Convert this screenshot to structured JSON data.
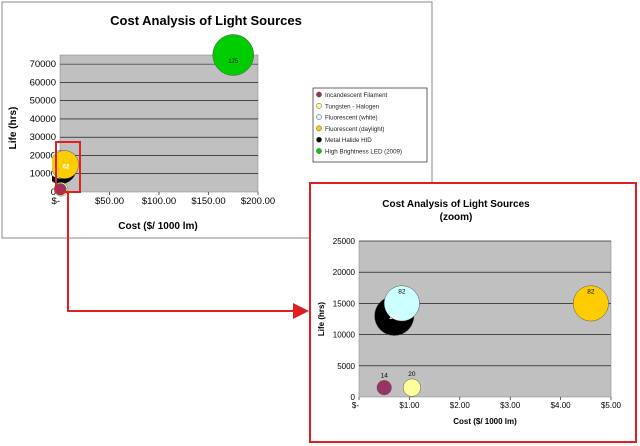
{
  "chart_data": [
    {
      "type": "bubble",
      "title": "Cost Analysis of Light Sources",
      "xlabel": "Cost ($/ 1000 lm)",
      "ylabel": "Life (hrs)",
      "xlim": [
        0,
        200
      ],
      "ylim": [
        0,
        75000
      ],
      "x_ticks": [
        0,
        50,
        100,
        150,
        200
      ],
      "x_tick_labels": [
        "$-",
        "$50.00",
        "$100.00",
        "$150.00",
        "$200.00"
      ],
      "y_ticks": [
        0,
        10000,
        20000,
        30000,
        40000,
        50000,
        60000,
        70000
      ],
      "y_tick_labels": [
        "0",
        "10000",
        "20000",
        "30000",
        "40000",
        "50000",
        "60000",
        "70000"
      ],
      "grid": "horizontal",
      "legend_position": "right",
      "series": [
        {
          "name": "Incandescent Filament",
          "x": 0.5,
          "y": 1500,
          "size": 14,
          "color": "#993366"
        },
        {
          "name": "Tungsten - Halogen",
          "x": 1.05,
          "y": 1500,
          "size": 20,
          "color": "#ffff99"
        },
        {
          "name": "Fluorescent (white)",
          "x": 0.85,
          "y": 15000,
          "size": 82,
          "color": "#ccffff"
        },
        {
          "name": "Fluorescent (daylight)",
          "x": 4.6,
          "y": 15000,
          "size": 82,
          "color": "#ffcc00"
        },
        {
          "name": "Metal Halide HID",
          "x": 0.7,
          "y": 13000,
          "size": 102,
          "color": "#000000"
        },
        {
          "name": "High Brightness LED (2009)",
          "x": 175,
          "y": 75000,
          "size": 175,
          "color": "#00cc00"
        }
      ],
      "visible_data_labels": [
        "82",
        "175"
      ]
    },
    {
      "type": "bubble",
      "title": "Cost Analysis of Light Sources",
      "subtitle": "(zoom)",
      "xlabel": "Cost ($/ 1000 lm)",
      "ylabel": "Life (hrs)",
      "xlim": [
        0,
        5
      ],
      "ylim": [
        0,
        25000
      ],
      "x_ticks": [
        0,
        1,
        2,
        3,
        4,
        5
      ],
      "x_tick_labels": [
        "$-",
        "$1.00",
        "$2.00",
        "$3.00",
        "$4.00",
        "$5.00"
      ],
      "y_ticks": [
        0,
        5000,
        10000,
        15000,
        20000,
        25000
      ],
      "y_tick_labels": [
        "0",
        "5000",
        "10000",
        "15000",
        "20000",
        "25000"
      ],
      "grid": "horizontal",
      "series": [
        {
          "name": "Incandescent Filament",
          "x": 0.5,
          "y": 1500,
          "size": 14,
          "color": "#993366"
        },
        {
          "name": "Tungsten - Halogen",
          "x": 1.05,
          "y": 1500,
          "size": 20,
          "color": "#ffff99"
        },
        {
          "name": "Fluorescent (white)",
          "x": 0.85,
          "y": 15000,
          "size": 82,
          "color": "#ccffff"
        },
        {
          "name": "Fluorescent (daylight)",
          "x": 4.6,
          "y": 15000,
          "size": 82,
          "color": "#ffcc00"
        },
        {
          "name": "Metal Halide HID",
          "x": 0.7,
          "y": 13000,
          "size": 102,
          "color": "#000000"
        }
      ]
    }
  ],
  "colors": {
    "plot_background": "#c0c0c0",
    "callout_border": "#e02020",
    "chart_border": "#888888"
  }
}
